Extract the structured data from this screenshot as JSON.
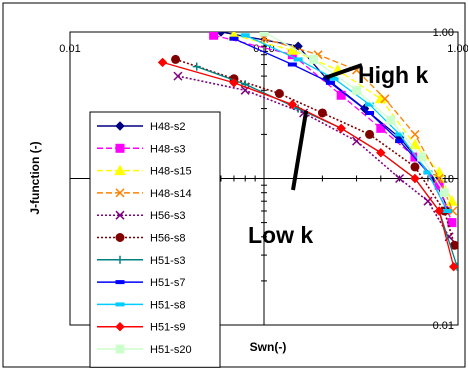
{
  "chart_data": {
    "type": "line",
    "title": "",
    "xlabel": "Swn(-)",
    "ylabel": "J-function (-)",
    "x_scale": "log",
    "y_scale": "log",
    "xlim": [
      0.01,
      1.0
    ],
    "ylim": [
      0.01,
      1.0
    ],
    "x_ticks": [
      "0.01",
      "0.10",
      "1.00"
    ],
    "y_ticks": [
      "1.00",
      "0.10",
      "0.01"
    ],
    "grid": false,
    "legend_position": "left",
    "annotations": [
      {
        "text": "High k",
        "x": 0.21,
        "y": 0.49
      },
      {
        "text": "Low k",
        "x": 0.165,
        "y": 0.29
      }
    ],
    "series": [
      {
        "name": "H48-s2",
        "color": "#000080",
        "marker": "diamond",
        "dash": "solid",
        "x": [
          0.06,
          0.15,
          0.21,
          0.33,
          0.5,
          0.75,
          0.9
        ],
        "y": [
          1.0,
          0.8,
          0.48,
          0.3,
          0.19,
          0.1,
          0.06
        ]
      },
      {
        "name": "H48-s3",
        "color": "#ff00ff",
        "marker": "square",
        "dash": "dashed",
        "x": [
          0.055,
          0.14,
          0.25,
          0.4,
          0.6,
          0.8,
          0.93
        ],
        "y": [
          0.95,
          0.7,
          0.37,
          0.22,
          0.14,
          0.09,
          0.05
        ]
      },
      {
        "name": "H48-s15",
        "color": "#ffff00",
        "marker": "triangle",
        "dash": "dashed",
        "x": [
          0.07,
          0.14,
          0.24,
          0.4,
          0.6,
          0.8,
          0.93
        ],
        "y": [
          0.95,
          0.75,
          0.55,
          0.35,
          0.17,
          0.11,
          0.07
        ]
      },
      {
        "name": "H48-s14",
        "color": "#ff8000",
        "marker": "x",
        "dash": "dashed",
        "x": [
          0.1,
          0.19,
          0.3,
          0.42,
          0.6,
          0.8,
          0.94
        ],
        "y": [
          0.9,
          0.7,
          0.55,
          0.35,
          0.2,
          0.1,
          0.06
        ]
      },
      {
        "name": "H56-s3",
        "color": "#800080",
        "marker": "x",
        "dash": "dotted",
        "x": [
          0.036,
          0.08,
          0.16,
          0.3,
          0.5,
          0.7,
          0.9
        ],
        "y": [
          0.5,
          0.4,
          0.28,
          0.18,
          0.1,
          0.07,
          0.04
        ]
      },
      {
        "name": "H56-s8",
        "color": "#800000",
        "marker": "circle",
        "dash": "dotted",
        "x": [
          0.035,
          0.07,
          0.12,
          0.2,
          0.35,
          0.6,
          0.85,
          0.96
        ],
        "y": [
          0.65,
          0.48,
          0.38,
          0.28,
          0.2,
          0.12,
          0.06,
          0.035
        ]
      },
      {
        "name": "H51-s3",
        "color": "#008080",
        "marker": "plus",
        "dash": "solid",
        "x": [
          0.045,
          0.08,
          0.15,
          0.25,
          0.4,
          0.6,
          0.8,
          0.99
        ],
        "y": [
          0.58,
          0.44,
          0.3,
          0.22,
          0.15,
          0.1,
          0.06,
          0.025
        ]
      },
      {
        "name": "H51-s7",
        "color": "#0000ff",
        "marker": "dash",
        "dash": "solid",
        "x": [
          0.07,
          0.14,
          0.22,
          0.35,
          0.5,
          0.7,
          0.88
        ],
        "y": [
          0.9,
          0.6,
          0.45,
          0.28,
          0.18,
          0.11,
          0.06
        ]
      },
      {
        "name": "H51-s8",
        "color": "#00ccff",
        "marker": "dash",
        "dash": "solid",
        "x": [
          0.08,
          0.15,
          0.23,
          0.35,
          0.5,
          0.7,
          0.88
        ],
        "y": [
          0.95,
          0.65,
          0.48,
          0.32,
          0.2,
          0.11,
          0.06
        ]
      },
      {
        "name": "H51-s9",
        "color": "#ff0000",
        "marker": "diamond",
        "dash": "solid",
        "x": [
          0.03,
          0.07,
          0.14,
          0.25,
          0.4,
          0.6,
          0.8,
          0.95
        ],
        "y": [
          0.62,
          0.45,
          0.32,
          0.22,
          0.15,
          0.1,
          0.06,
          0.025
        ]
      },
      {
        "name": "H51-s20",
        "color": "#ccffcc",
        "marker": "square",
        "dash": "solid",
        "x": [
          0.1,
          0.18,
          0.3,
          0.45,
          0.65,
          0.85
        ],
        "y": [
          1.0,
          0.65,
          0.4,
          0.25,
          0.14,
          0.08
        ]
      }
    ]
  }
}
